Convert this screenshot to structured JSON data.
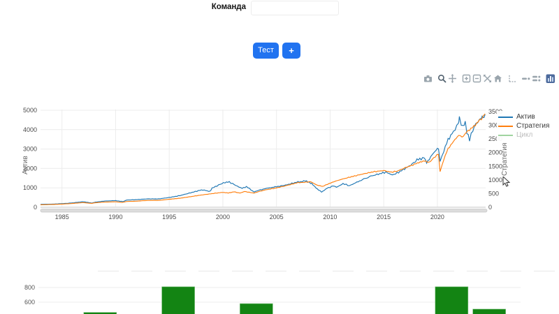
{
  "header": {
    "team_label": "Команда",
    "team_input_value": "",
    "team_input_placeholder": ""
  },
  "toolbar": {
    "test_button_label": "Тест",
    "add_button_label": "+"
  },
  "modebar": {
    "icons": [
      "camera",
      "zoom",
      "pan",
      "zoom-in",
      "zoom-out",
      "autoscale",
      "reset-axes",
      "spikelines",
      "hover-closest",
      "hover-compare",
      "plotly-logo"
    ]
  },
  "colors": {
    "button_blue": "#2173f0",
    "line_blue": "#1f77b4",
    "line_orange": "#ff7f0e",
    "line_green": "#2ca02c",
    "bar_green": "#138413",
    "grid": "#ececec",
    "tick_text": "#4a4a4a",
    "axis_title_text": "#666666",
    "modebar_gray": "#9aa5ad",
    "modebar_active": "#50606d",
    "plotly_logo_blue": "#4c6a9c"
  },
  "chart_data": [
    {
      "type": "line",
      "title": "",
      "xlabel": "",
      "x_range": [
        1983,
        2024.5
      ],
      "x_ticks": [
        1985,
        1990,
        1995,
        2000,
        2005,
        2010,
        2015,
        2020
      ],
      "grid": true,
      "legend_position": "top-right",
      "yaxis_left": {
        "title": "Актив",
        "range": [
          0,
          5000
        ],
        "ticks": [
          0,
          1000,
          2000,
          3000,
          4000,
          5000
        ]
      },
      "yaxis_right": {
        "title": "Стратегия",
        "range": [
          0,
          3500
        ],
        "ticks": [
          0,
          500,
          1000,
          1500,
          2000,
          2500,
          3000,
          3500
        ]
      },
      "series": [
        {
          "name": "Актив",
          "axis": "left",
          "color": "#1f77b4",
          "visible": true,
          "points": [
            [
              1983,
              150
            ],
            [
              1984,
              160
            ],
            [
              1985,
              185
            ],
            [
              1986,
              225
            ],
            [
              1987,
              285
            ],
            [
              1987.8,
              215
            ],
            [
              1988,
              250
            ],
            [
              1989,
              320
            ],
            [
              1990,
              345
            ],
            [
              1990.7,
              290
            ],
            [
              1991,
              370
            ],
            [
              1992,
              395
            ],
            [
              1993,
              430
            ],
            [
              1994,
              425
            ],
            [
              1995,
              500
            ],
            [
              1996,
              600
            ],
            [
              1997,
              750
            ],
            [
              1998,
              900
            ],
            [
              1998.8,
              820
            ],
            [
              1999,
              1000
            ],
            [
              2000.2,
              1280
            ],
            [
              2000.6,
              1300
            ],
            [
              2001.2,
              1120
            ],
            [
              2001.8,
              980
            ],
            [
              2002.2,
              1060
            ],
            [
              2002.9,
              790
            ],
            [
              2003.5,
              900
            ],
            [
              2004,
              960
            ],
            [
              2004.5,
              1020
            ],
            [
              2005,
              1060
            ],
            [
              2006,
              1160
            ],
            [
              2007,
              1300
            ],
            [
              2007.8,
              1360
            ],
            [
              2008.3,
              1200
            ],
            [
              2008.8,
              950
            ],
            [
              2009.2,
              780
            ],
            [
              2009.7,
              980
            ],
            [
              2010.3,
              1100
            ],
            [
              2010.6,
              1030
            ],
            [
              2011.2,
              1220
            ],
            [
              2011.8,
              1100
            ],
            [
              2012.5,
              1290
            ],
            [
              2013,
              1420
            ],
            [
              2013.8,
              1600
            ],
            [
              2014.5,
              1720
            ],
            [
              2015.2,
              1800
            ],
            [
              2015.8,
              1680
            ],
            [
              2016.1,
              1720
            ],
            [
              2016.8,
              1950
            ],
            [
              2017.5,
              2150
            ],
            [
              2018.1,
              2450
            ],
            [
              2018.75,
              2550
            ],
            [
              2019,
              2300
            ],
            [
              2019.5,
              2700
            ],
            [
              2019.9,
              2950
            ],
            [
              2020.1,
              3050
            ],
            [
              2020.25,
              2350
            ],
            [
              2020.6,
              2900
            ],
            [
              2021,
              3500
            ],
            [
              2021.5,
              3900
            ],
            [
              2021.95,
              4350
            ],
            [
              2022.05,
              4570
            ],
            [
              2022.4,
              4150
            ],
            [
              2022.6,
              4350
            ],
            [
              2022.75,
              3900
            ],
            [
              2023,
              3500
            ],
            [
              2023.3,
              3950
            ],
            [
              2023.6,
              4300
            ],
            [
              2023.9,
              4500
            ],
            [
              2024.1,
              4700
            ],
            [
              2024.25,
              4550
            ],
            [
              2024.45,
              4780
            ]
          ]
        },
        {
          "name": "Стратегия",
          "axis": "right",
          "color": "#ff7f0e",
          "visible": true,
          "points": [
            [
              1983,
              90
            ],
            [
              1984,
              100
            ],
            [
              1985,
              115
            ],
            [
              1986,
              140
            ],
            [
              1987,
              170
            ],
            [
              1987.8,
              140
            ],
            [
              1988,
              160
            ],
            [
              1989,
              190
            ],
            [
              1990,
              200
            ],
            [
              1990.6,
              175
            ],
            [
              1991,
              210
            ],
            [
              1992,
              225
            ],
            [
              1993,
              250
            ],
            [
              1994,
              250
            ],
            [
              1995,
              290
            ],
            [
              1996,
              330
            ],
            [
              1997,
              390
            ],
            [
              1998,
              450
            ],
            [
              1999,
              500
            ],
            [
              2000,
              545
            ],
            [
              2000.5,
              520
            ],
            [
              2001,
              565
            ],
            [
              2001.6,
              520
            ],
            [
              2002,
              575
            ],
            [
              2002.9,
              520
            ],
            [
              2003.5,
              590
            ],
            [
              2004,
              640
            ],
            [
              2005,
              710
            ],
            [
              2006,
              800
            ],
            [
              2007,
              900
            ],
            [
              2008.2,
              930
            ],
            [
              2008.8,
              810
            ],
            [
              2009.3,
              760
            ],
            [
              2009.9,
              870
            ],
            [
              2010.5,
              950
            ],
            [
              2011,
              1020
            ],
            [
              2012,
              1120
            ],
            [
              2013,
              1210
            ],
            [
              2014,
              1290
            ],
            [
              2015,
              1340
            ],
            [
              2015.7,
              1290
            ],
            [
              2016.3,
              1320
            ],
            [
              2017,
              1450
            ],
            [
              2018,
              1600
            ],
            [
              2018.8,
              1700
            ],
            [
              2019.2,
              1640
            ],
            [
              2019.8,
              1850
            ],
            [
              2020.1,
              1950
            ],
            [
              2020.25,
              1300
            ],
            [
              2020.6,
              1750
            ],
            [
              2021,
              2150
            ],
            [
              2021.5,
              2400
            ],
            [
              2022,
              2650
            ],
            [
              2022.3,
              2550
            ],
            [
              2022.7,
              2750
            ],
            [
              2023,
              2850
            ],
            [
              2023.4,
              2950
            ],
            [
              2023.8,
              3150
            ],
            [
              2024.1,
              3250
            ],
            [
              2024.45,
              3420
            ]
          ]
        },
        {
          "name": "Цикл",
          "axis": "right",
          "color": "#2ca02c",
          "visible": false,
          "points": []
        }
      ]
    },
    {
      "type": "bar",
      "title": "",
      "y_ticks": [
        600,
        800
      ],
      "bar_color": "#138413",
      "bars": [
        {
          "x_frac": 0.128,
          "value": 460
        },
        {
          "x_frac": 0.29,
          "value": 810
        },
        {
          "x_frac": 0.452,
          "value": 580
        },
        {
          "x_frac": 0.857,
          "value": 810
        },
        {
          "x_frac": 0.935,
          "value": 505
        }
      ]
    }
  ]
}
